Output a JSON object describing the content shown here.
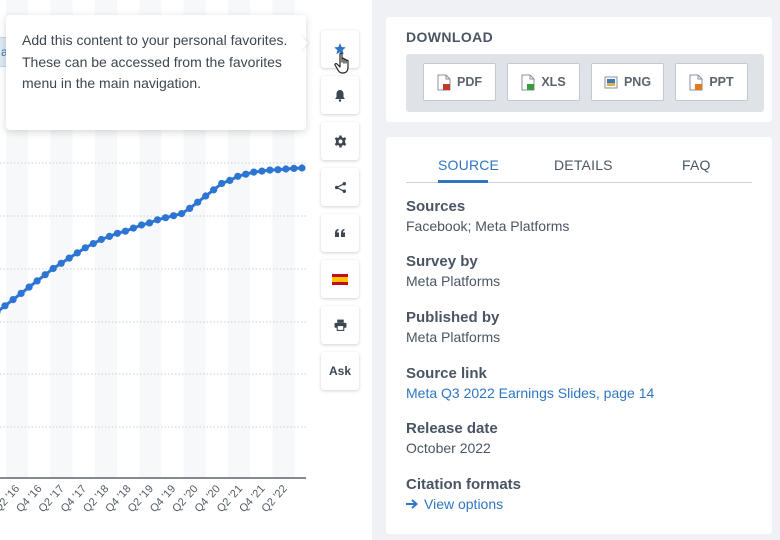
{
  "chart_strip": {
    "text": "a"
  },
  "chart_data": {
    "type": "line",
    "title": "",
    "xlabel": "",
    "ylabel": "",
    "grid": true,
    "series_color": "#2c75d3",
    "tick_labels": [
      "Q2 '16",
      "Q4 '16",
      "Q2 '17",
      "Q4 '17",
      "Q2 '18",
      "Q4 '18",
      "Q2 '19",
      "Q4 '19",
      "Q2 '20",
      "Q4 '20",
      "Q2 '21",
      "Q4 '21",
      "Q2 '22"
    ],
    "values": [
      0.0,
      0.03,
      0.06,
      0.09,
      0.12,
      0.15,
      0.18,
      0.21,
      0.235,
      0.26,
      0.285,
      0.31,
      0.33,
      0.35,
      0.365,
      0.38,
      0.39,
      0.405,
      0.42,
      0.43,
      0.445,
      0.455,
      0.465,
      0.475,
      0.5,
      0.53,
      0.56,
      0.59,
      0.62,
      0.635,
      0.655,
      0.665,
      0.675,
      0.68,
      0.685,
      0.687,
      0.69,
      0.693,
      0.695
    ]
  },
  "tooltip": {
    "text": "Add this content to your personal favorites. These can be accessed from the favorites menu in the main navigation."
  },
  "tools": {
    "ask_label": "Ask",
    "star_color": "#2f76c2"
  },
  "download": {
    "title": "DOWNLOAD",
    "buttons": [
      {
        "label": "PDF",
        "icon": "pdf-file-icon",
        "color": "#c0392b"
      },
      {
        "label": "XLS",
        "icon": "xls-file-icon",
        "color": "#3c9a3f"
      },
      {
        "label": "PNG",
        "icon": "png-file-icon",
        "color": "#3b78c4"
      },
      {
        "label": "PPT",
        "icon": "ppt-file-icon",
        "color": "#e07b24"
      }
    ]
  },
  "tabs": [
    {
      "label": "SOURCE",
      "active": true
    },
    {
      "label": "DETAILS",
      "active": false
    },
    {
      "label": "FAQ",
      "active": false
    }
  ],
  "source_info": {
    "sources_label": "Sources",
    "sources_value": "Facebook; Meta Platforms",
    "survey_label": "Survey by",
    "survey_value": "Meta Platforms",
    "published_label": "Published by",
    "published_value": "Meta Platforms",
    "link_label": "Source link",
    "link_value": "Meta Q3 2022 Earnings Slides, page 14",
    "release_label": "Release date",
    "release_value": "October 2022",
    "citation_label": "Citation formats",
    "citation_link": "View options"
  }
}
